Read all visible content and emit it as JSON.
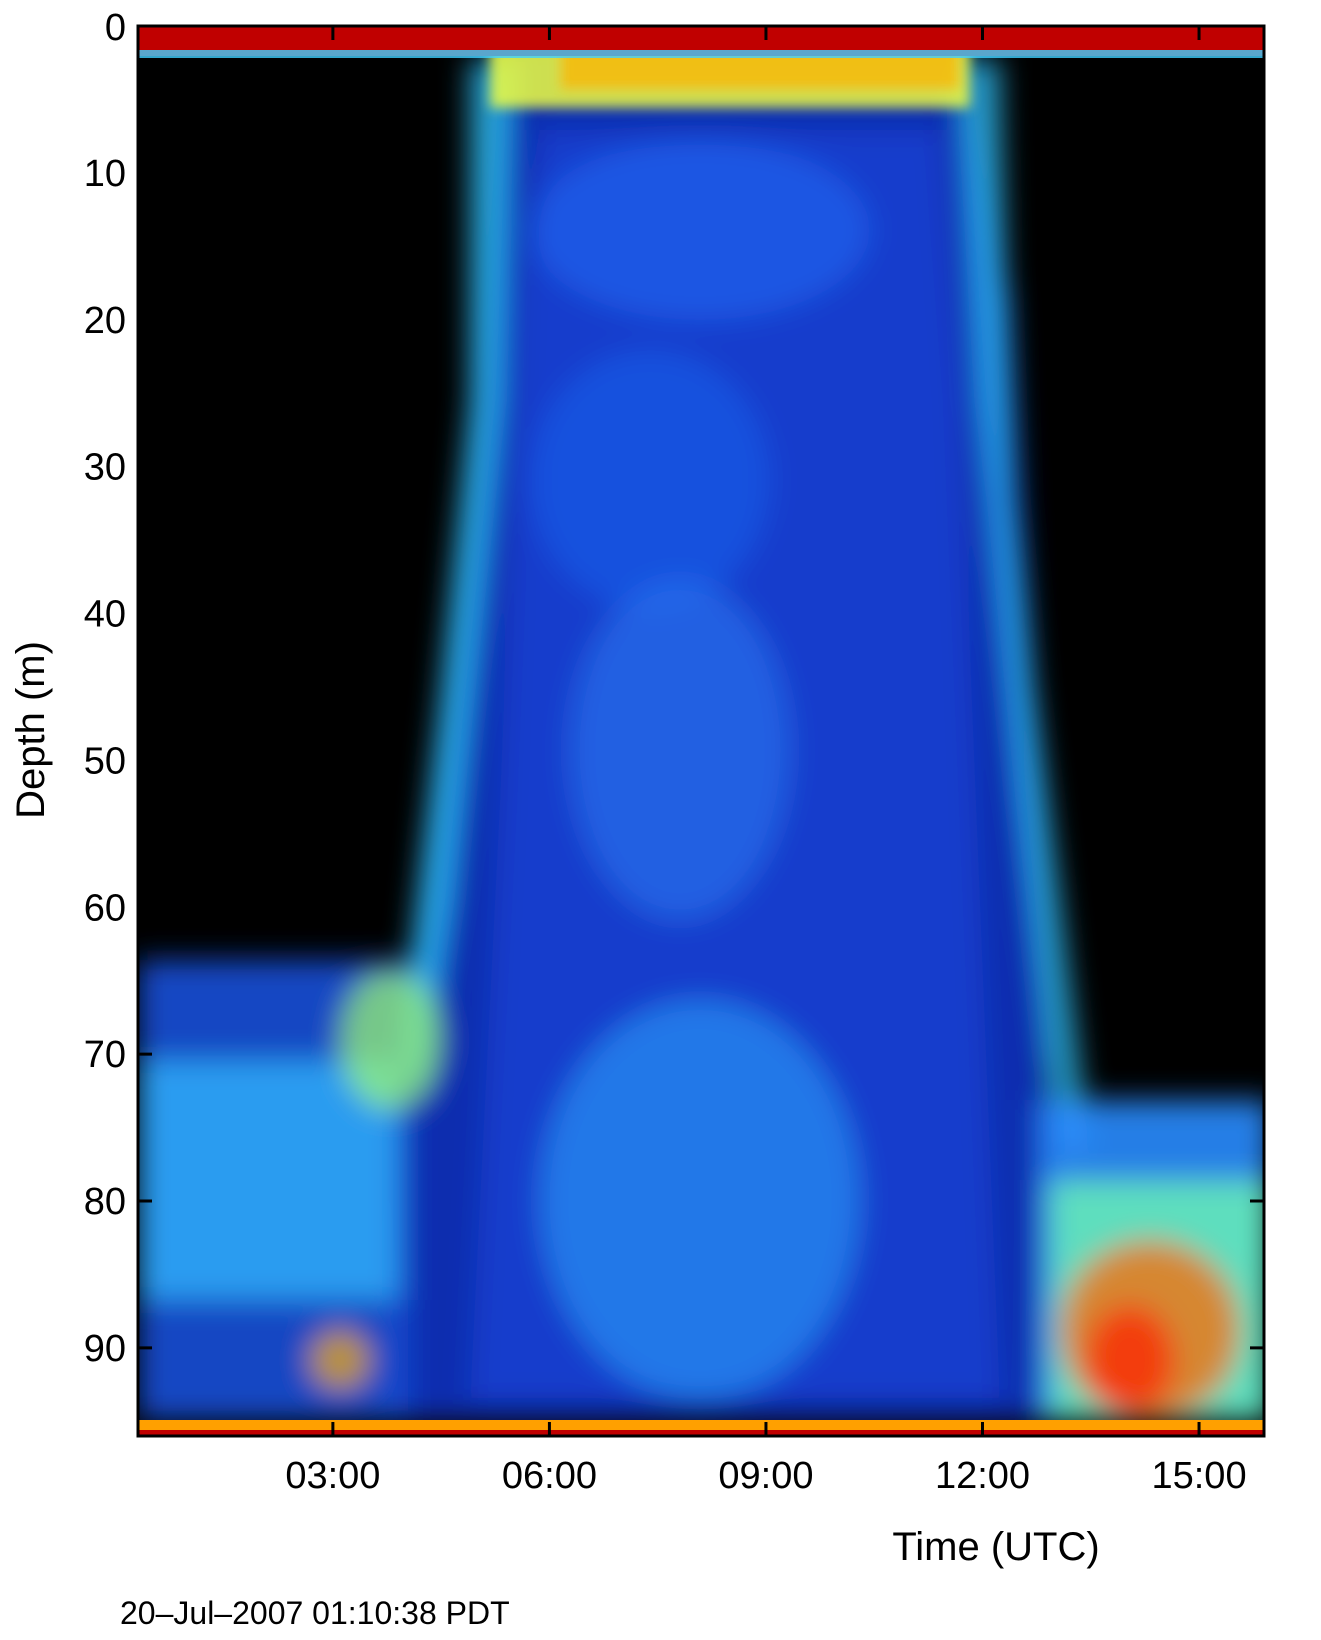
{
  "chart_data": {
    "type": "heatmap",
    "title": "",
    "xlabel": "Time (UTC)",
    "ylabel": "Depth (m)",
    "y_ticks": [
      0,
      10,
      20,
      30,
      40,
      50,
      60,
      70,
      80,
      90
    ],
    "x_ticks": [
      "03:00",
      "06:00",
      "09:00",
      "12:00",
      "15:00"
    ],
    "x_tick_hours": [
      3,
      6,
      9,
      12,
      15
    ],
    "xlim_hours": [
      0.3,
      15.9
    ],
    "ylim": [
      0,
      96
    ],
    "y_reversed": true,
    "colormap": [
      "#000000",
      "#001a8c",
      "#0050e6",
      "#00c8ff",
      "#60ffd0",
      "#ffff00",
      "#ff8000",
      "#ff0000",
      "#b00000"
    ],
    "features": [
      {
        "name": "surface-layer",
        "depth_range": [
          0,
          2
        ],
        "level": "very high"
      },
      {
        "name": "daytime-scattering-region",
        "time_range_hours": [
          5.0,
          12.1
        ],
        "depth_range": [
          2,
          95
        ],
        "level": "moderate"
      },
      {
        "name": "near-surface-band",
        "time_range_hours": [
          5.0,
          11.5
        ],
        "depth_range": [
          2,
          8
        ],
        "level": "high"
      },
      {
        "name": "night-deep-layer-early",
        "time_range_hours": [
          0.3,
          3.5
        ],
        "depth_range": [
          65,
          95
        ],
        "level": "moderate"
      },
      {
        "name": "night-deep-layer-late",
        "time_range_hours": [
          13.0,
          15.9
        ],
        "depth_range": [
          78,
          95
        ],
        "level": "high"
      }
    ],
    "grid": false,
    "legend": "none"
  },
  "footer": {
    "timestamp": "20–Jul–2007 01:10:38 PDT"
  }
}
